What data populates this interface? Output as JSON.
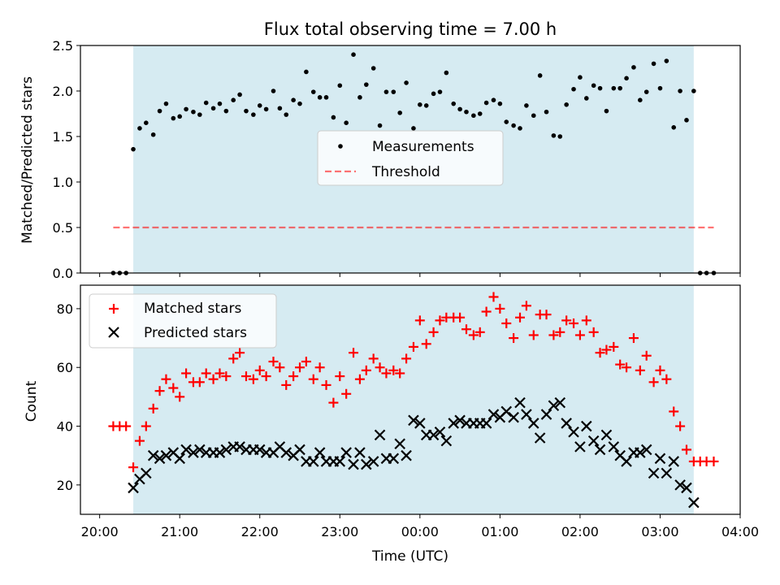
{
  "colors": {
    "shade": "#add8e6",
    "measurement": "#000000",
    "threshold": "#ff0000",
    "matched": "#ff0000",
    "predicted": "#000000"
  },
  "chart_data": [
    {
      "type": "scatter",
      "title": "Flux total observing time = 7.00 h",
      "xlabel": "",
      "ylabel": "Matched/Predicted stars",
      "xlim": [
        -0.24,
        8.0
      ],
      "ylim": [
        0.0,
        2.5
      ],
      "yticks": [
        "0.0",
        "0.5",
        "1.0",
        "1.5",
        "2.0",
        "2.5"
      ],
      "shaded_x_range": [
        0.42,
        7.42
      ],
      "legend": {
        "placement": "center",
        "entries": [
          "Measurements",
          "Threshold"
        ]
      },
      "threshold": {
        "name": "Threshold",
        "value": 0.5,
        "x_range": [
          0.17,
          7.67
        ]
      },
      "series": [
        {
          "name": "Measurements",
          "x": [
            0.17,
            0.25,
            0.33,
            0.42,
            0.5,
            0.58,
            0.67,
            0.75,
            0.83,
            0.92,
            1.0,
            1.08,
            1.17,
            1.25,
            1.33,
            1.42,
            1.5,
            1.58,
            1.67,
            1.75,
            1.83,
            1.92,
            2.0,
            2.08,
            2.17,
            2.25,
            2.33,
            2.42,
            2.5,
            2.58,
            2.67,
            2.75,
            2.83,
            2.92,
            3.0,
            3.08,
            3.17,
            3.25,
            3.33,
            3.42,
            3.5,
            3.58,
            3.67,
            3.75,
            3.83,
            3.92,
            4.0,
            4.08,
            4.17,
            4.25,
            4.33,
            4.42,
            4.5,
            4.58,
            4.67,
            4.75,
            4.83,
            4.92,
            5.0,
            5.08,
            5.17,
            5.25,
            5.33,
            5.42,
            5.5,
            5.58,
            5.67,
            5.75,
            5.83,
            5.92,
            6.0,
            6.08,
            6.17,
            6.25,
            6.33,
            6.42,
            6.5,
            6.58,
            6.67,
            6.75,
            6.83,
            6.92,
            7.0,
            7.08,
            7.17,
            7.25,
            7.33,
            7.42,
            7.5,
            7.58,
            7.67
          ],
          "y": [
            0.0,
            0.0,
            0.0,
            1.36,
            1.59,
            1.65,
            1.52,
            1.78,
            1.86,
            1.7,
            1.72,
            1.8,
            1.77,
            1.74,
            1.87,
            1.81,
            1.86,
            1.78,
            1.9,
            1.96,
            1.78,
            1.74,
            1.84,
            1.8,
            2.0,
            1.81,
            1.74,
            1.9,
            1.86,
            2.21,
            1.99,
            1.93,
            1.93,
            1.71,
            2.06,
            1.65,
            2.4,
            1.93,
            2.07,
            2.25,
            1.62,
            1.99,
            1.99,
            1.76,
            2.09,
            1.59,
            1.85,
            1.84,
            1.97,
            1.99,
            2.2,
            1.86,
            1.8,
            1.77,
            1.73,
            1.75,
            1.87,
            1.9,
            1.86,
            1.66,
            1.62,
            1.59,
            1.84,
            1.73,
            2.17,
            1.77,
            1.51,
            1.5,
            1.85,
            2.02,
            2.15,
            1.92,
            2.06,
            2.03,
            1.78,
            2.03,
            2.03,
            2.14,
            2.26,
            1.9,
            1.99,
            2.3,
            2.03,
            2.33,
            1.6,
            2.0,
            1.68,
            2.0,
            0.0,
            0.0,
            0.0
          ]
        }
      ]
    },
    {
      "type": "scatter",
      "title": "",
      "xlabel": "Time (UTC)",
      "ylabel": "Count",
      "xlim": [
        -0.24,
        8.0
      ],
      "ylim": [
        10,
        88
      ],
      "yticks": [
        "20",
        "40",
        "60",
        "80"
      ],
      "xticks": [
        "20:00",
        "21:00",
        "22:00",
        "23:00",
        "00:00",
        "01:00",
        "02:00",
        "03:00",
        "04:00"
      ],
      "shaded_x_range": [
        0.42,
        7.42
      ],
      "legend": {
        "placement": "top-left",
        "entries": [
          "Matched stars",
          "Predicted stars"
        ]
      },
      "series": [
        {
          "name": "Matched stars",
          "x": [
            0.17,
            0.25,
            0.33,
            0.42,
            0.5,
            0.58,
            0.67,
            0.75,
            0.83,
            0.92,
            1.0,
            1.08,
            1.17,
            1.25,
            1.33,
            1.42,
            1.5,
            1.58,
            1.67,
            1.75,
            1.83,
            1.92,
            2.0,
            2.08,
            2.17,
            2.25,
            2.33,
            2.42,
            2.5,
            2.58,
            2.67,
            2.75,
            2.83,
            2.92,
            3.0,
            3.08,
            3.17,
            3.25,
            3.33,
            3.42,
            3.5,
            3.58,
            3.67,
            3.75,
            3.83,
            3.92,
            4.0,
            4.08,
            4.17,
            4.25,
            4.33,
            4.42,
            4.5,
            4.58,
            4.67,
            4.75,
            4.83,
            4.92,
            5.0,
            5.08,
            5.17,
            5.25,
            5.33,
            5.42,
            5.5,
            5.58,
            5.67,
            5.75,
            5.83,
            5.92,
            6.0,
            6.08,
            6.17,
            6.25,
            6.33,
            6.42,
            6.5,
            6.58,
            6.67,
            6.75,
            6.83,
            6.92,
            7.0,
            7.08,
            7.17,
            7.25,
            7.33,
            7.42,
            7.5,
            7.58,
            7.67
          ],
          "y": [
            40,
            40,
            40,
            26,
            35,
            40,
            46,
            52,
            56,
            53,
            50,
            58,
            55,
            55,
            58,
            56,
            58,
            57,
            63,
            65,
            57,
            56,
            59,
            57,
            62,
            60,
            54,
            57,
            60,
            62,
            56,
            60,
            54,
            48,
            57,
            51,
            65,
            56,
            59,
            63,
            60,
            58,
            59,
            58,
            63,
            67,
            76,
            68,
            72,
            76,
            77,
            77,
            77,
            73,
            71,
            72,
            79,
            84,
            80,
            75,
            70,
            77,
            81,
            71,
            78,
            78,
            71,
            72,
            76,
            75,
            71,
            76,
            72,
            65,
            66,
            67,
            61,
            60,
            70,
            59,
            64,
            55,
            59,
            56,
            45,
            40,
            32,
            28,
            28,
            28,
            28
          ]
        },
        {
          "name": "Predicted stars",
          "x": [
            0.42,
            0.5,
            0.58,
            0.67,
            0.75,
            0.83,
            0.92,
            1.0,
            1.08,
            1.17,
            1.25,
            1.33,
            1.42,
            1.5,
            1.58,
            1.67,
            1.75,
            1.83,
            1.92,
            2.0,
            2.08,
            2.17,
            2.25,
            2.33,
            2.42,
            2.5,
            2.58,
            2.67,
            2.75,
            2.83,
            2.92,
            3.0,
            3.08,
            3.17,
            3.25,
            3.33,
            3.42,
            3.5,
            3.58,
            3.67,
            3.75,
            3.83,
            3.92,
            4.0,
            4.08,
            4.17,
            4.25,
            4.33,
            4.42,
            4.5,
            4.58,
            4.67,
            4.75,
            4.83,
            4.92,
            5.0,
            5.08,
            5.17,
            5.25,
            5.33,
            5.42,
            5.5,
            5.58,
            5.67,
            5.75,
            5.83,
            5.92,
            6.0,
            6.08,
            6.17,
            6.25,
            6.33,
            6.42,
            6.5,
            6.58,
            6.67,
            6.75,
            6.83,
            6.92,
            7.0,
            7.08,
            7.17,
            7.25,
            7.33,
            7.42
          ],
          "y": [
            19,
            22,
            24,
            30,
            29,
            30,
            31,
            29,
            32,
            31,
            32,
            31,
            31,
            31,
            32,
            33,
            33,
            32,
            32,
            32,
            31,
            31,
            33,
            31,
            30,
            32,
            28,
            28,
            31,
            28,
            28,
            28,
            31,
            27,
            31,
            27,
            28,
            37,
            29,
            29,
            34,
            30,
            42,
            41,
            37,
            37,
            38,
            35,
            41,
            42,
            41,
            41,
            41,
            41,
            44,
            43,
            45,
            43,
            48,
            44,
            41,
            36,
            44,
            47,
            48,
            41,
            38,
            33,
            40,
            35,
            32,
            37,
            33,
            30,
            28,
            31,
            31,
            32,
            24,
            29,
            24,
            28,
            20,
            19,
            14
          ]
        }
      ]
    }
  ]
}
